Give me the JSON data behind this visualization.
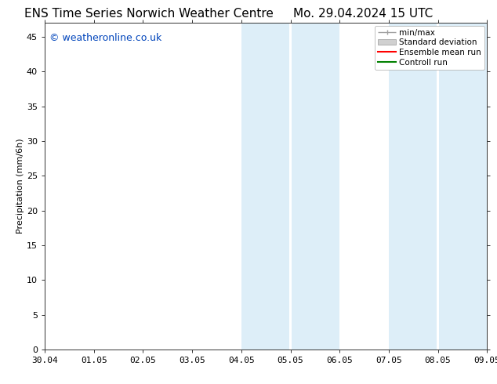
{
  "title_left": "ENS Time Series Norwich Weather Centre",
  "title_right": "Mo. 29.04.2024 15 UTC",
  "ylabel": "Precipitation (mm/6h)",
  "xlabel_ticks": [
    "30.04",
    "01.05",
    "02.05",
    "03.05",
    "04.05",
    "05.05",
    "06.05",
    "07.05",
    "08.05",
    "09.05"
  ],
  "xlim": [
    0,
    9
  ],
  "ylim": [
    0,
    47
  ],
  "yticks": [
    0,
    5,
    10,
    15,
    20,
    25,
    30,
    35,
    40,
    45
  ],
  "shaded_regions": [
    {
      "x_start": 4.0,
      "x_end": 4.5,
      "color": "#ddeef8"
    },
    {
      "x_start": 4.5,
      "x_end": 5.0,
      "color": "#ddeef8"
    },
    {
      "x_start": 5.0,
      "x_end": 5.5,
      "color": "#ddeef8"
    },
    {
      "x_start": 5.5,
      "x_end": 6.0,
      "color": "#ddeef8"
    },
    {
      "x_start": 7.0,
      "x_end": 7.5,
      "color": "#ddeef8"
    },
    {
      "x_start": 7.5,
      "x_end": 8.0,
      "color": "#ddeef8"
    },
    {
      "x_start": 8.0,
      "x_end": 8.5,
      "color": "#ddeef8"
    },
    {
      "x_start": 8.5,
      "x_end": 9.0,
      "color": "#ddeef8"
    }
  ],
  "shaded_bands": [
    {
      "x_start": 4.0,
      "x_end": 6.0
    },
    {
      "x_start": 7.0,
      "x_end": 9.0
    }
  ],
  "band_color": "#ddeef8",
  "band_dividers": [
    5.0,
    8.0
  ],
  "legend_labels": [
    "min/max",
    "Standard deviation",
    "Ensemble mean run",
    "Controll run"
  ],
  "legend_colors_minmax": "#a0a0a0",
  "legend_colors_std": "#d0d0d0",
  "legend_colors_ens": "#ff0000",
  "legend_colors_ctrl": "#008000",
  "watermark_text": "© weatheronline.co.uk",
  "watermark_color": "#0044bb",
  "watermark_fontsize": 9,
  "bg_color": "#ffffff",
  "title_fontsize": 11,
  "axis_label_fontsize": 8,
  "tick_fontsize": 8
}
